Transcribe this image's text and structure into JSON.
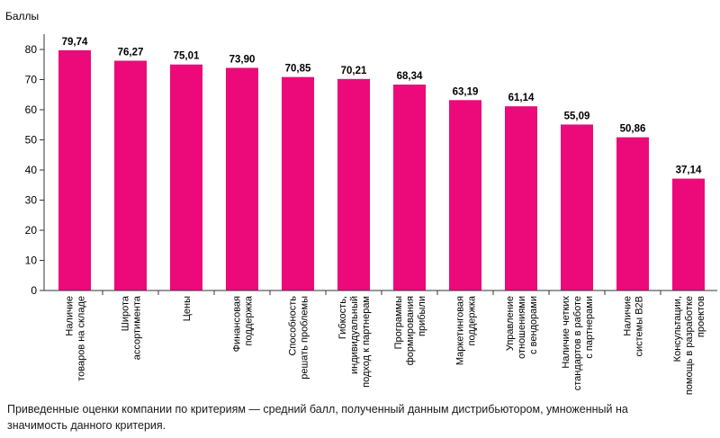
{
  "caption": "Приведенные оценки компании по критериям — средний балл, полученный данным дистрибьютором, умноженный на значимость данного критерия.",
  "chart_data": {
    "type": "bar",
    "title": "",
    "ylabel": "Баллы",
    "xlabel": "",
    "ylim": [
      0,
      80
    ],
    "yticks": [
      0,
      10,
      20,
      30,
      40,
      50,
      60,
      70,
      80
    ],
    "bar_color": "#ec0a7a",
    "grid": false,
    "categories": [
      [
        "Наличие",
        "товаров на складе"
      ],
      [
        "Широта",
        "ассортимента"
      ],
      [
        "Цены"
      ],
      [
        "Финансовая",
        "поддержка"
      ],
      [
        "Способность",
        "решать проблемы"
      ],
      [
        "Гибкость,",
        "индивидуальный",
        "подход к партнерам"
      ],
      [
        "Программы",
        "формирования",
        "прибыли"
      ],
      [
        "Маркетинговая",
        "поддержка"
      ],
      [
        "Управление",
        "отношениями",
        "с вендорами"
      ],
      [
        "Наличие четких",
        "стандартов в работе",
        "с партнерами"
      ],
      [
        "Наличие",
        "системы B2B"
      ],
      [
        "Консультации,",
        "помощь в разработке",
        "проектов"
      ]
    ],
    "values": [
      79.74,
      76.27,
      75.01,
      73.9,
      70.85,
      70.21,
      68.34,
      63.19,
      61.14,
      55.09,
      50.86,
      37.14
    ],
    "value_labels": [
      "79,74",
      "76,27",
      "75,01",
      "73,90",
      "70,85",
      "70,21",
      "68,34",
      "63,19",
      "61,14",
      "55,09",
      "50,86",
      "37,14"
    ]
  }
}
